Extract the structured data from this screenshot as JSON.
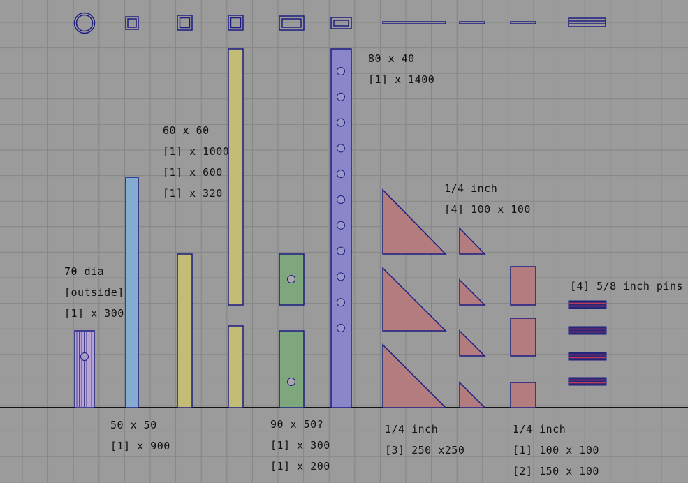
{
  "colors": {
    "background": "#9b9b9b",
    "grid": "#858585",
    "outline": "#1c1c82",
    "ground": "#111111",
    "purple_tube": "#b7a4d4",
    "blue_bar": "#85acd0",
    "yellow_bar": "#c3bc77",
    "green_bar": "#7fa77d",
    "violet_bar": "#8b86c9",
    "triangle": "#b37c7e",
    "plate": "#b37c7e",
    "pin_red": "#c43a52"
  },
  "labels": {
    "tube_1": "70 dia",
    "tube_2": "[outside]",
    "tube_3": "[1] x 300",
    "sq50_1": "50 x 50",
    "sq50_2": "[1] x 900",
    "sq60_1": "60 x 60",
    "sq60_2": "[1] x 1000",
    "sq60_3": "[1] x 600",
    "sq60_4": "[1] x 320",
    "rect90_1": "90 x 50?",
    "rect90_2": "[1] x 300",
    "rect90_3": "[1] x 200",
    "rect80_1": "80 x 40",
    "rect80_2": "[1] x 1400",
    "tri_small_1": "1/4 inch",
    "tri_small_2": "[4] 100 x 100",
    "tri_large_1": "1/4 inch",
    "tri_large_2": "[3] 250 x250",
    "plates_1": "1/4 inch",
    "plates_2": "[1] 100 x 100",
    "plates_3": "[2] 150 x 100",
    "pins_1": "[4] 5/8 inch pins"
  }
}
